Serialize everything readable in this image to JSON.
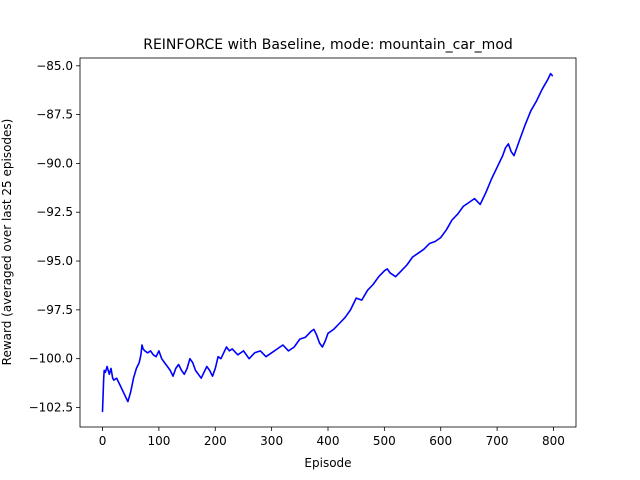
{
  "chart_data": {
    "type": "line",
    "title": "REINFORCE with Baseline, mode: mountain_car_mod",
    "xlabel": "Episode",
    "ylabel": "Reward (averaged over last 25 episodes)",
    "xlim": [
      -40,
      840
    ],
    "ylim": [
      -103.5,
      -84.6
    ],
    "xticks": [
      0,
      100,
      200,
      300,
      400,
      500,
      600,
      700,
      800
    ],
    "yticks": [
      -102.5,
      -100.0,
      -97.5,
      -95.0,
      -92.5,
      -90.0,
      -87.5,
      -85.0
    ],
    "xtick_labels": [
      "0",
      "100",
      "200",
      "300",
      "400",
      "500",
      "600",
      "700",
      "800"
    ],
    "ytick_labels": [
      "−102.5",
      "−100.0",
      "−97.5",
      "−95.0",
      "−92.5",
      "−90.0",
      "−87.5",
      "−85.0"
    ],
    "grid": false,
    "series": [
      {
        "color": "#0000ff",
        "x": [
          0,
          2,
          3,
          5,
          8,
          12,
          15,
          18,
          20,
          25,
          30,
          35,
          40,
          45,
          50,
          55,
          60,
          65,
          68,
          70,
          72,
          75,
          80,
          85,
          90,
          95,
          100,
          105,
          110,
          115,
          120,
          125,
          130,
          135,
          140,
          145,
          150,
          155,
          160,
          165,
          170,
          175,
          180,
          185,
          190,
          195,
          200,
          205,
          210,
          215,
          220,
          225,
          230,
          240,
          250,
          260,
          270,
          280,
          290,
          300,
          310,
          320,
          330,
          340,
          350,
          360,
          370,
          375,
          380,
          385,
          390,
          395,
          400,
          410,
          420,
          430,
          440,
          450,
          460,
          470,
          480,
          490,
          500,
          505,
          510,
          520,
          530,
          540,
          550,
          560,
          570,
          580,
          590,
          600,
          610,
          620,
          630,
          640,
          650,
          660,
          670,
          680,
          690,
          700,
          710,
          715,
          720,
          725,
          730,
          740,
          750,
          760,
          770,
          780,
          790,
          795,
          798
        ],
        "values": [
          -102.7,
          -101.0,
          -100.6,
          -100.7,
          -100.4,
          -100.8,
          -100.5,
          -101.0,
          -101.1,
          -101.0,
          -101.3,
          -101.6,
          -101.9,
          -102.2,
          -101.7,
          -101.0,
          -100.5,
          -100.2,
          -99.8,
          -99.3,
          -99.5,
          -99.6,
          -99.7,
          -99.6,
          -99.8,
          -99.9,
          -99.6,
          -100.0,
          -100.2,
          -100.4,
          -100.6,
          -100.9,
          -100.5,
          -100.3,
          -100.6,
          -100.8,
          -100.5,
          -100.0,
          -100.2,
          -100.6,
          -100.8,
          -101.0,
          -100.7,
          -100.4,
          -100.6,
          -100.9,
          -100.5,
          -99.9,
          -100.0,
          -99.7,
          -99.4,
          -99.6,
          -99.5,
          -99.8,
          -99.6,
          -100.0,
          -99.7,
          -99.6,
          -99.9,
          -99.7,
          -99.5,
          -99.3,
          -99.6,
          -99.4,
          -99.0,
          -98.9,
          -98.6,
          -98.5,
          -98.8,
          -99.2,
          -99.4,
          -99.1,
          -98.7,
          -98.5,
          -98.2,
          -97.9,
          -97.5,
          -96.9,
          -97.0,
          -96.5,
          -96.2,
          -95.8,
          -95.5,
          -95.4,
          -95.6,
          -95.8,
          -95.5,
          -95.2,
          -94.8,
          -94.6,
          -94.4,
          -94.1,
          -94.0,
          -93.8,
          -93.4,
          -92.9,
          -92.6,
          -92.2,
          -92.0,
          -91.8,
          -92.1,
          -91.5,
          -90.8,
          -90.2,
          -89.6,
          -89.2,
          -89.0,
          -89.4,
          -89.6,
          -88.8,
          -88.0,
          -87.3,
          -86.8,
          -86.2,
          -85.7,
          -85.4,
          -85.5
        ]
      }
    ]
  }
}
